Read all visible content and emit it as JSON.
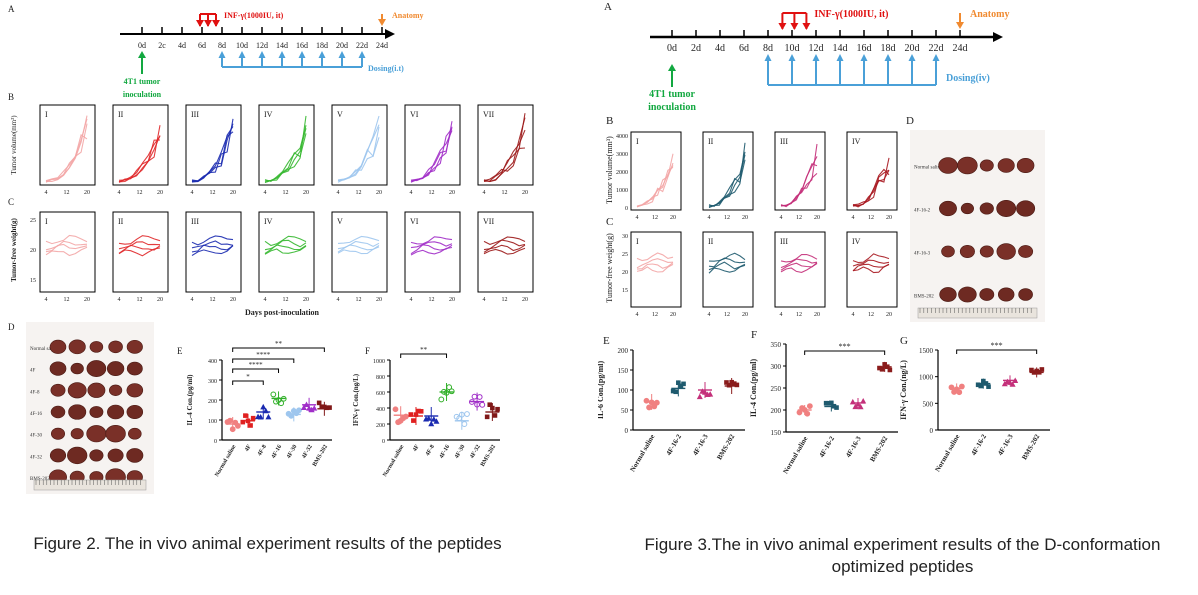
{
  "fig2": {
    "caption": "Figure 2. The in vivo animal experiment results of the peptides",
    "timeline": {
      "panel_label": "A",
      "ticks": [
        "0d",
        "2c",
        "4d",
        "6d",
        "8d",
        "10d",
        "12d",
        "14d",
        "16d",
        "18d",
        "20d",
        "22d",
        "24d"
      ],
      "inf_label": "INF-γ(1000IU, it)",
      "anatomy_label": "Anatomy",
      "inoculation_label": [
        "4T1 tumor",
        "inoculation"
      ],
      "dosing_label": "Dosing(i.t)"
    },
    "row_b": {
      "panel_label": "B",
      "ylabel": "Tumor volume(mm³)",
      "ticks": [
        "4",
        "12",
        "20"
      ],
      "groups": [
        "I",
        "II",
        "III",
        "IV",
        "V",
        "VI",
        "VII"
      ]
    },
    "row_c": {
      "panel_label": "C",
      "ylabel": "Tumor-free weight(g)",
      "yticks": [
        "25",
        "20",
        "15"
      ],
      "ticks": [
        "4",
        "12",
        "20"
      ],
      "groups": [
        "I",
        "II",
        "III",
        "IV",
        "V",
        "VI",
        "VII"
      ],
      "xlabel": "Days post-inoculation"
    },
    "panel_d": {
      "panel_label": "D",
      "rows": [
        "Normal saline",
        "4F",
        "4F-8",
        "4F-16",
        "4F-30",
        "4F-32",
        "BMS-202"
      ]
    },
    "panel_e": {
      "panel_label": "E",
      "ylabel": "IL-4 Con.(pg/ml)",
      "yticks": [
        "400",
        "300",
        "200",
        "100",
        "0"
      ],
      "categories": [
        "Normal saline",
        "4F",
        "4F-8",
        "4F-16",
        "4F-30",
        "4F-32",
        "BMS-202"
      ],
      "sig": [
        "**",
        "****",
        "****",
        "*"
      ]
    },
    "panel_f": {
      "panel_label": "F",
      "ylabel": "IFN-γ Con.(ng/L)",
      "yticks": [
        "1000",
        "800",
        "600",
        "400",
        "200",
        "0"
      ],
      "categories": [
        "Normal saline",
        "4F",
        "4F-8",
        "4F-16",
        "4F-30",
        "4F-32",
        "BMS-202"
      ],
      "sig": [
        "**"
      ]
    }
  },
  "fig3": {
    "caption_line1": "Figure 3.The in vivo animal experiment results of the D-conformation",
    "caption_line2": "optimized peptides",
    "timeline": {
      "panel_label": "A",
      "ticks": [
        "0d",
        "2d",
        "4d",
        "6d",
        "8d",
        "10d",
        "12d",
        "14d",
        "16d",
        "18d",
        "20d",
        "22d",
        "24d"
      ],
      "inf_label": "INF-γ(1000IU, it)",
      "anatomy_label": "Anatomy",
      "inoculation_label": [
        "4T1 tumor",
        "inoculation"
      ],
      "dosing_label": "Dosing(iv)"
    },
    "row_b": {
      "panel_label": "B",
      "ylabel": "Tumor volume(mm³)",
      "yticks": [
        "4000",
        "3000",
        "2000",
        "1000",
        "0"
      ],
      "ticks": [
        "4",
        "12",
        "20"
      ],
      "groups": [
        "I",
        "II",
        "III",
        "IV"
      ]
    },
    "row_c": {
      "panel_label": "C",
      "ylabel": "Tumor-free weight(g)",
      "yticks": [
        "30",
        "25",
        "20",
        "15"
      ],
      "ticks": [
        "4",
        "12",
        "20"
      ],
      "groups": [
        "I",
        "II",
        "III",
        "IV"
      ]
    },
    "panel_d": {
      "panel_label": "D",
      "rows": [
        "Normal saline",
        "4F-16-2",
        "4F-16-3",
        "BMS-202"
      ]
    },
    "panel_e": {
      "panel_label": "E",
      "ylabel": "IL-6 Con.(pg/ml)",
      "yticks": [
        "200",
        "150",
        "100",
        "50",
        "0"
      ],
      "categories": [
        "Normal saline",
        "4F-16-2",
        "4F-16-3",
        "BMS-202"
      ]
    },
    "panel_f": {
      "panel_label": "F",
      "ylabel": "IL-4 Con.(pg/ml)",
      "yticks": [
        "350",
        "300",
        "250",
        "200",
        "150"
      ],
      "categories": [
        "Normal saline",
        "4F-16-2",
        "4F-16-3",
        "BMS-202"
      ],
      "sig": [
        "***"
      ]
    },
    "panel_g": {
      "panel_label": "G",
      "ylabel": "IFN-γ Con.(ng/L)",
      "yticks": [
        "1500",
        "1000",
        "500",
        "0"
      ],
      "categories": [
        "Normal saline",
        "4F-16-2",
        "4F-16-3",
        "BMS-202"
      ],
      "sig": [
        "***"
      ]
    }
  }
}
